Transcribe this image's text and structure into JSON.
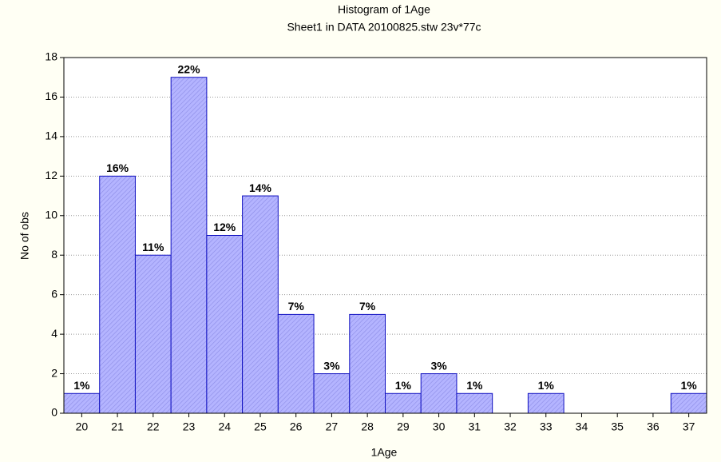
{
  "chart_data": {
    "type": "bar",
    "title": "Histogram of 1Age",
    "subtitle": "Sheet1 in DATA 20100825.stw 23v*77c",
    "x_label": "1Age",
    "y_label": "No of obs",
    "categories": [
      "20",
      "21",
      "22",
      "23",
      "24",
      "25",
      "26",
      "27",
      "28",
      "29",
      "30",
      "31",
      "32",
      "33",
      "34",
      "35",
      "36",
      "37"
    ],
    "values": [
      1,
      12,
      8,
      17,
      9,
      11,
      5,
      2,
      5,
      1,
      2,
      1,
      0,
      1,
      0,
      0,
      0,
      1
    ],
    "bar_labels": [
      "1%",
      "16%",
      "11%",
      "22%",
      "12%",
      "14%",
      "7%",
      "3%",
      "7%",
      "1%",
      "3%",
      "1%",
      null,
      "1%",
      null,
      null,
      null,
      "1%"
    ],
    "color": "#b4b4ff",
    "edge_color": "#1010c0",
    "ylim": [
      0,
      18
    ],
    "yticks": [
      0,
      2,
      4,
      6,
      8,
      10,
      12,
      14,
      16,
      18
    ],
    "grid": true
  }
}
